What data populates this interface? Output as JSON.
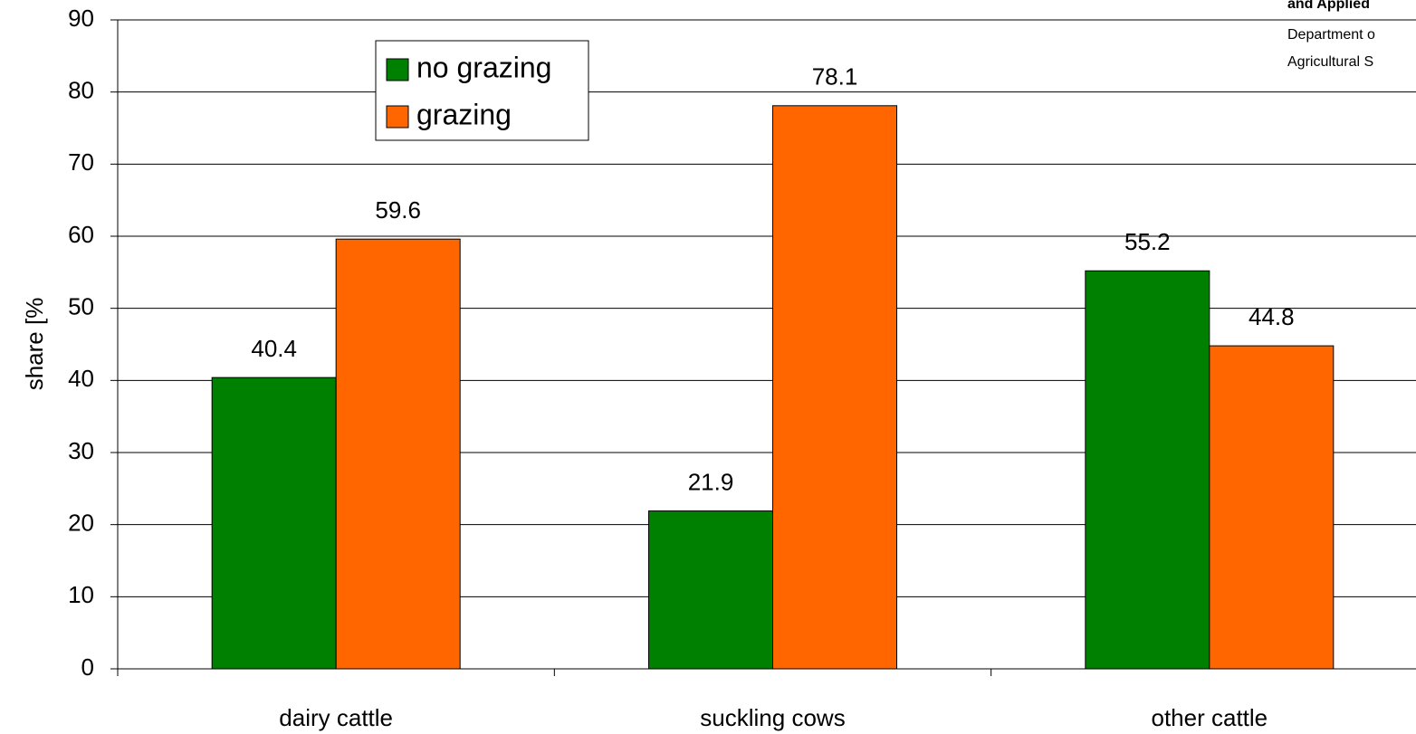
{
  "chart_data": {
    "type": "bar",
    "y_axis_label": "share [%",
    "categories": [
      "dairy cattle",
      "suckling cows",
      "other cattle"
    ],
    "series": [
      {
        "name": "no grazing",
        "color": "#008000",
        "values": [
          40.4,
          21.9,
          55.2
        ]
      },
      {
        "name": "grazing",
        "color": "#ff6600",
        "values": [
          59.6,
          78.1,
          44.8
        ]
      }
    ],
    "ylim": [
      0,
      90
    ],
    "yticks": [
      0,
      10,
      20,
      30,
      40,
      50,
      60,
      70,
      80,
      90
    ],
    "grid": true,
    "legend": "top-left",
    "annotations": [
      "and Applied",
      "Department o",
      "Agricultural S"
    ]
  }
}
